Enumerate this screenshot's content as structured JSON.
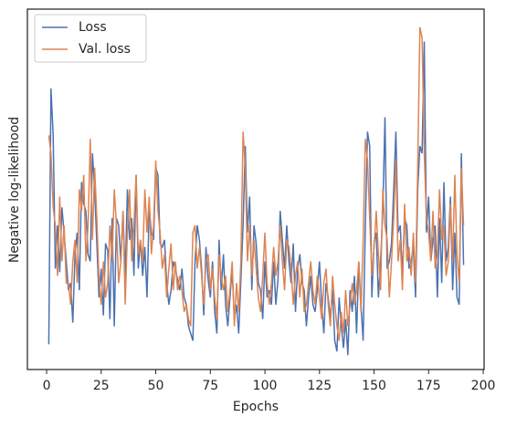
{
  "chart_data": {
    "type": "line",
    "xlabel": "Epochs",
    "ylabel": "Negative log-likelihood",
    "x": [
      1,
      2,
      3,
      4,
      5,
      6,
      7,
      8,
      9,
      10,
      11,
      12,
      13,
      14,
      15,
      16,
      17,
      18,
      19,
      20,
      21,
      22,
      23,
      24,
      25,
      26,
      27,
      28,
      29,
      30,
      31,
      32,
      33,
      34,
      35,
      36,
      37,
      38,
      39,
      40,
      41,
      42,
      43,
      44,
      45,
      46,
      47,
      48,
      49,
      50,
      51,
      52,
      53,
      54,
      55,
      56,
      57,
      58,
      59,
      60,
      61,
      62,
      63,
      64,
      65,
      66,
      67,
      68,
      69,
      70,
      71,
      72,
      73,
      74,
      75,
      76,
      77,
      78,
      79,
      80,
      81,
      82,
      83,
      84,
      85,
      86,
      87,
      88,
      89,
      90,
      91,
      92,
      93,
      94,
      95,
      96,
      97,
      98,
      99,
      100,
      101,
      102,
      103,
      104,
      105,
      106,
      107,
      108,
      109,
      110,
      111,
      112,
      113,
      114,
      115,
      116,
      117,
      118,
      119,
      120,
      121,
      122,
      123,
      124,
      125,
      126,
      127,
      128,
      129,
      130,
      131,
      132,
      133,
      134,
      135,
      136,
      137,
      138,
      139,
      140,
      141,
      142,
      143,
      144,
      145,
      146,
      147,
      148,
      149,
      150,
      151,
      152,
      153,
      154,
      155,
      156,
      157,
      158,
      159,
      160,
      161,
      162,
      163,
      164,
      165,
      166,
      167,
      168,
      169,
      170,
      171,
      172,
      173,
      174,
      175,
      176,
      177,
      178,
      179,
      180,
      181,
      182,
      183,
      184,
      185,
      186,
      187,
      188,
      189,
      190,
      191
    ],
    "series": [
      {
        "name": "Loss",
        "color": "#4c72b0",
        "values": [
          7,
          78,
          65,
          28,
          40,
          27,
          45,
          38,
          30,
          22,
          24,
          13,
          32,
          38,
          22,
          52,
          46,
          44,
          32,
          30,
          60,
          50,
          35,
          20,
          28,
          15,
          35,
          33,
          14,
          42,
          12,
          42,
          40,
          30,
          44,
          25,
          50,
          36,
          42,
          26,
          54,
          28,
          36,
          26,
          34,
          20,
          45,
          38,
          36,
          56,
          54,
          35,
          34,
          36,
          24,
          18,
          22,
          30,
          28,
          25,
          22,
          28,
          20,
          18,
          12,
          10,
          8,
          30,
          40,
          36,
          28,
          15,
          34,
          25,
          20,
          30,
          16,
          10,
          36,
          22,
          32,
          18,
          12,
          20,
          28,
          14,
          18,
          10,
          25,
          40,
          62,
          38,
          48,
          22,
          40,
          35,
          24,
          22,
          14,
          30,
          20,
          22,
          18,
          30,
          18,
          25,
          44,
          36,
          28,
          40,
          30,
          24,
          35,
          16,
          28,
          32,
          24,
          22,
          12,
          20,
          26,
          18,
          16,
          22,
          30,
          18,
          10,
          24,
          20,
          14,
          22,
          8,
          5,
          20,
          12,
          6,
          14,
          4,
          22,
          16,
          26,
          10,
          30,
          18,
          8,
          40,
          66,
          62,
          20,
          35,
          38,
          20,
          30,
          44,
          70,
          28,
          30,
          35,
          50,
          66,
          38,
          40,
          26,
          42,
          40,
          28,
          30,
          34,
          20,
          50,
          62,
          60,
          91,
          38,
          48,
          30,
          36,
          40,
          20,
          42,
          24,
          52,
          30,
          34,
          48,
          22,
          38,
          20,
          18,
          60,
          29
        ]
      },
      {
        "name": "Val. loss",
        "color": "#dd8452",
        "values": [
          65,
          60,
          45,
          40,
          26,
          48,
          30,
          40,
          24,
          24,
          18,
          30,
          36,
          24,
          50,
          44,
          54,
          30,
          40,
          64,
          36,
          56,
          42,
          25,
          18,
          30,
          20,
          24,
          40,
          30,
          50,
          40,
          24,
          30,
          44,
          18,
          38,
          50,
          30,
          40,
          54,
          32,
          36,
          30,
          50,
          38,
          48,
          32,
          40,
          58,
          44,
          38,
          28,
          32,
          20,
          28,
          35,
          22,
          30,
          22,
          26,
          22,
          16,
          18,
          14,
          12,
          38,
          40,
          28,
          34,
          26,
          18,
          30,
          32,
          22,
          28,
          20,
          14,
          32,
          26,
          22,
          26,
          16,
          22,
          30,
          12,
          24,
          16,
          30,
          66,
          56,
          30,
          40,
          26,
          36,
          28,
          20,
          16,
          26,
          38,
          24,
          18,
          24,
          34,
          26,
          30,
          40,
          30,
          22,
          36,
          34,
          28,
          18,
          26,
          30,
          20,
          28,
          16,
          18,
          24,
          30,
          22,
          18,
          26,
          20,
          14,
          24,
          28,
          18,
          12,
          26,
          18,
          12,
          8,
          16,
          10,
          22,
          12,
          18,
          24,
          18,
          22,
          30,
          16,
          36,
          64,
          58,
          42,
          26,
          34,
          44,
          32,
          22,
          50,
          40,
          36,
          20,
          30,
          42,
          58,
          30,
          36,
          22,
          46,
          30,
          34,
          26,
          38,
          24,
          56,
          95,
          92,
          60,
          42,
          38,
          30,
          44,
          28,
          32,
          50,
          36,
          40,
          26,
          30,
          46,
          30,
          54,
          32,
          24,
          56,
          40
        ]
      }
    ],
    "xlim": [
      -8.8,
      200.4
    ],
    "xticks": [
      0,
      25,
      50,
      75,
      100,
      125,
      150,
      175,
      200
    ],
    "ylim": [
      0,
      100
    ],
    "legend": "upper left"
  }
}
